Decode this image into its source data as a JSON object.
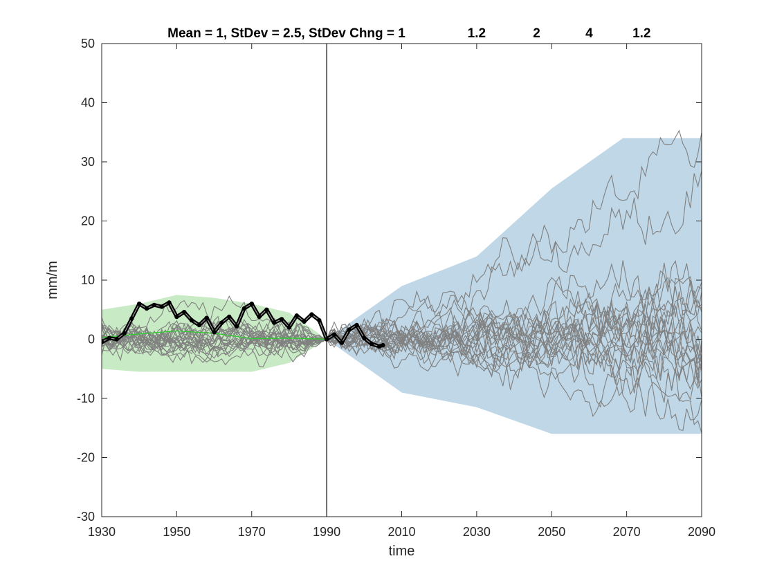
{
  "chart_data": {
    "type": "line",
    "title": "Mean = 1, StDev = 2.5, StDev Chng = 1",
    "title_annotations": [
      {
        "x": 2030,
        "text": "1.2"
      },
      {
        "x": 2046,
        "text": "2"
      },
      {
        "x": 2060,
        "text": "4"
      },
      {
        "x": 2074,
        "text": "1.2"
      }
    ],
    "xlabel": "time",
    "ylabel": "mm/m",
    "xlim": [
      1930,
      2090
    ],
    "ylim": [
      -30,
      50
    ],
    "xticks": [
      1930,
      1950,
      1970,
      1990,
      2010,
      2030,
      2050,
      2070,
      2090
    ],
    "yticks": [
      -30,
      -20,
      -10,
      0,
      10,
      20,
      30,
      40,
      50
    ],
    "vline_x": 1990,
    "colors": {
      "historical_band": "#c8eac4",
      "future_band": "#bfd7e6",
      "ensemble": "#808080",
      "observed": "#000000",
      "observed_inner": "#9a9a9a",
      "mean": "#2ecc2e",
      "axes": "#262626"
    },
    "historical_band": {
      "x": [
        1930,
        1940,
        1950,
        1960,
        1970,
        1980,
        1990
      ],
      "upper": [
        5,
        6,
        7.5,
        7,
        6,
        4.5,
        0
      ],
      "lower": [
        -5,
        -5.5,
        -5.5,
        -5.5,
        -5.5,
        -4,
        0
      ]
    },
    "future_band": {
      "x": [
        1990,
        2010,
        2030,
        2050,
        2069,
        2090
      ],
      "upper": [
        0,
        9,
        14,
        25.5,
        34,
        34
      ],
      "lower": [
        0,
        -9,
        -11.5,
        -16,
        -16,
        -16
      ]
    },
    "mean_line": {
      "x": [
        1930,
        1940,
        1950,
        1960,
        1970,
        1980,
        1990
      ],
      "y": [
        0.3,
        0.9,
        1.4,
        1.0,
        0.1,
        0.2,
        0
      ]
    },
    "observed": {
      "x": [
        1930,
        1932,
        1934,
        1936,
        1938,
        1940,
        1942,
        1944,
        1946,
        1948,
        1950,
        1952,
        1954,
        1956,
        1958,
        1960,
        1962,
        1964,
        1966,
        1968,
        1970,
        1972,
        1974,
        1976,
        1978,
        1980,
        1982,
        1984,
        1986,
        1988,
        1990,
        1992,
        1994,
        1996,
        1998,
        2000,
        2002,
        2004,
        2005
      ],
      "y": [
        -0.5,
        0.2,
        0.0,
        1.0,
        3.5,
        6.0,
        5.2,
        5.8,
        5.5,
        6.2,
        3.8,
        4.6,
        3.2,
        2.4,
        3.6,
        1.2,
        2.8,
        3.8,
        2.2,
        5.2,
        6.0,
        3.8,
        5.0,
        2.8,
        3.4,
        2.0,
        4.0,
        3.0,
        4.2,
        3.2,
        0.0,
        0.8,
        -0.6,
        1.6,
        2.4,
        0.2,
        -0.8,
        -1.2,
        -1.0
      ]
    },
    "ensemble_count": 24,
    "ensemble_finals": [
      32.5,
      26.5,
      11.5,
      8.0,
      6.5,
      6.0,
      5.0,
      4.2,
      3.5,
      2.5,
      1.8,
      0.8,
      0.0,
      -0.8,
      -1.6,
      -2.2,
      -3.0,
      -3.5,
      -4.2,
      -5.0,
      -6.5,
      -9.0,
      -13.0,
      0.3
    ]
  }
}
